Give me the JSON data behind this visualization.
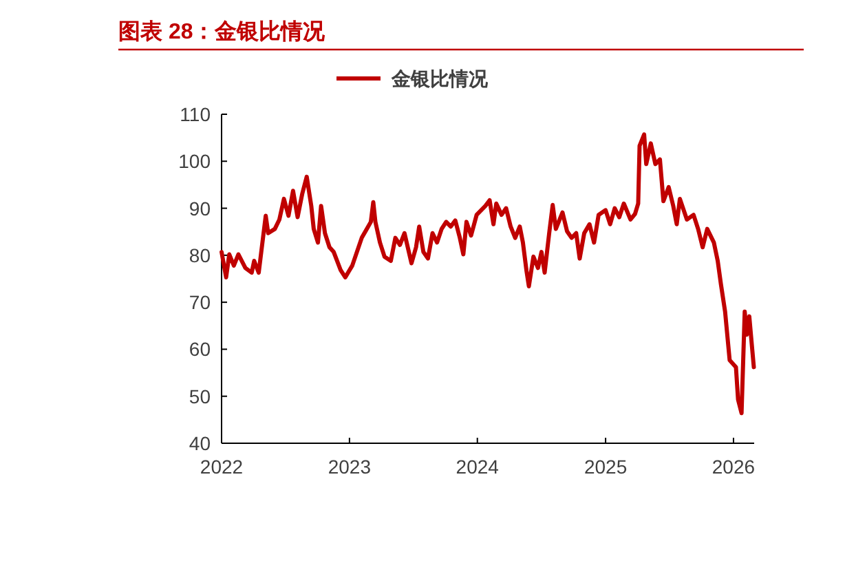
{
  "chart_data": {
    "type": "line",
    "title": "图表 28：金银比情况",
    "legend": "top",
    "grid": false,
    "xlim": [
      "2022-01-01",
      "2026-03-01"
    ],
    "xticks": [
      "2022",
      "2023",
      "2024",
      "2025",
      "2026"
    ],
    "ylim": [
      40,
      110
    ],
    "yticks": [
      40,
      50,
      60,
      70,
      80,
      90,
      100,
      110
    ],
    "series": [
      {
        "name": "金银比情况",
        "color": "#c00000",
        "x": [
          "2022-01-01",
          "2022-01-14",
          "2022-01-23",
          "2022-02-05",
          "2022-02-18",
          "2022-03-10",
          "2022-03-28",
          "2022-04-04",
          "2022-04-17",
          "2022-05-07",
          "2022-05-14",
          "2022-06-02",
          "2022-06-15",
          "2022-06-28",
          "2022-07-11",
          "2022-07-24",
          "2022-08-06",
          "2022-08-19",
          "2022-09-01",
          "2022-09-14",
          "2022-09-21",
          "2022-10-03",
          "2022-10-12",
          "2022-10-23",
          "2022-11-05",
          "2022-11-17",
          "2022-12-07",
          "2022-12-20",
          "2023-01-09",
          "2023-02-05",
          "2023-02-18",
          "2023-03-03",
          "2023-03-10",
          "2023-03-16",
          "2023-03-29",
          "2023-04-11",
          "2023-04-29",
          "2023-05-12",
          "2023-05-25",
          "2023-06-07",
          "2023-06-27",
          "2023-07-10",
          "2023-07-19",
          "2023-07-31",
          "2023-08-13",
          "2023-08-26",
          "2023-09-08",
          "2023-09-21",
          "2023-10-04",
          "2023-10-17",
          "2023-10-30",
          "2023-11-12",
          "2023-11-22",
          "2023-12-01",
          "2023-12-14",
          "2023-12-30",
          "2024-01-24",
          "2024-02-05",
          "2024-02-16",
          "2024-02-24",
          "2024-03-10",
          "2024-03-23",
          "2024-04-05",
          "2024-04-18",
          "2024-05-01",
          "2024-05-10",
          "2024-05-20",
          "2024-05-27",
          "2024-06-09",
          "2024-06-22",
          "2024-07-02",
          "2024-07-11",
          "2024-07-24",
          "2024-08-03",
          "2024-08-12",
          "2024-08-31",
          "2024-09-13",
          "2024-09-26",
          "2024-10-09",
          "2024-10-19",
          "2024-11-01",
          "2024-11-16",
          "2024-11-29",
          "2024-12-12",
          "2025-01-01",
          "2025-01-14",
          "2025-01-27",
          "2025-02-09",
          "2025-02-22",
          "2025-03-13",
          "2025-03-26",
          "2025-04-04",
          "2025-04-08",
          "2025-04-21",
          "2025-04-27",
          "2025-05-10",
          "2025-05-23",
          "2025-06-05",
          "2025-06-15",
          "2025-06-30",
          "2025-07-13",
          "2025-07-23",
          "2025-08-01",
          "2025-08-21",
          "2025-09-09",
          "2025-09-22",
          "2025-10-05",
          "2025-10-18",
          "2025-11-06",
          "2025-11-17",
          "2025-11-26",
          "2025-12-08",
          "2025-12-21",
          "2026-01-08",
          "2026-01-14",
          "2026-01-24",
          "2026-02-02",
          "2026-02-08",
          "2026-02-15",
          "2026-02-28"
        ],
        "values": [
          80.7,
          75.3,
          80.2,
          77.8,
          80.2,
          77.3,
          76.3,
          78.8,
          76.3,
          88.4,
          84.7,
          85.6,
          87.6,
          92.0,
          88.4,
          93.7,
          88.1,
          93.0,
          96.7,
          90.5,
          85.6,
          82.7,
          90.5,
          84.7,
          81.7,
          80.7,
          76.8,
          75.3,
          77.8,
          83.7,
          85.4,
          87.1,
          91.3,
          87.1,
          82.7,
          79.7,
          78.8,
          83.7,
          82.2,
          84.7,
          78.3,
          81.7,
          86.1,
          80.7,
          79.3,
          84.7,
          82.7,
          85.6,
          87.1,
          86.1,
          87.4,
          83.7,
          80.2,
          87.1,
          84.2,
          88.6,
          90.5,
          91.7,
          86.6,
          91.0,
          88.6,
          90.0,
          86.1,
          83.7,
          86.1,
          82.7,
          76.8,
          73.4,
          79.7,
          77.3,
          80.7,
          76.3,
          84.7,
          90.7,
          85.6,
          89.1,
          85.1,
          83.7,
          84.7,
          79.3,
          84.7,
          86.6,
          82.7,
          88.6,
          89.6,
          86.6,
          90.0,
          88.1,
          91.0,
          87.6,
          88.8,
          91.0,
          103.3,
          105.7,
          99.4,
          103.8,
          99.4,
          100.4,
          91.5,
          94.5,
          90.5,
          86.6,
          92.0,
          87.6,
          88.6,
          85.6,
          81.7,
          85.6,
          82.7,
          78.8,
          73.9,
          68.0,
          57.7,
          56.2,
          49.3,
          46.4,
          68.0,
          63.1,
          67.0,
          56.2
        ]
      }
    ]
  }
}
